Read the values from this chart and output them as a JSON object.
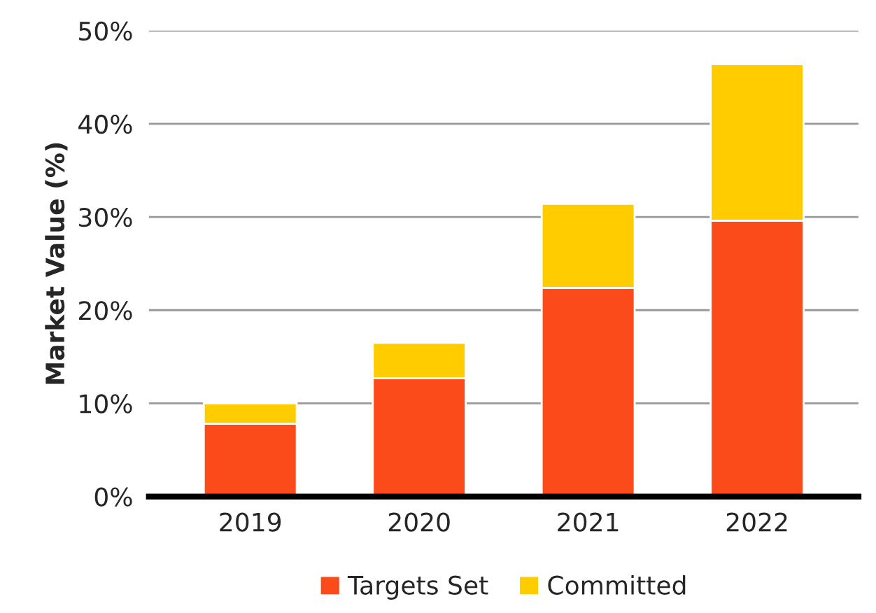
{
  "chart_data": {
    "type": "bar",
    "stacked": true,
    "ylabel": "Market Value (%)",
    "categories": [
      "2019",
      "2020",
      "2021",
      "2022"
    ],
    "series": [
      {
        "name": "Targets Set",
        "color": "#fc4b1a",
        "values": [
          7.8,
          12.7,
          22.4,
          29.6
        ]
      },
      {
        "name": "Committed",
        "color": "#ffcc00",
        "values": [
          2.2,
          3.8,
          9.0,
          16.8
        ]
      }
    ],
    "ylim": [
      0,
      50
    ],
    "yticks": [
      {
        "value": 0,
        "label": "0%"
      },
      {
        "value": 10,
        "label": "10%"
      },
      {
        "value": 20,
        "label": "20%"
      },
      {
        "value": 30,
        "label": "30%"
      },
      {
        "value": 40,
        "label": "40%"
      },
      {
        "value": 50,
        "label": "50%"
      }
    ],
    "grid": "y",
    "legend": "bottom"
  }
}
